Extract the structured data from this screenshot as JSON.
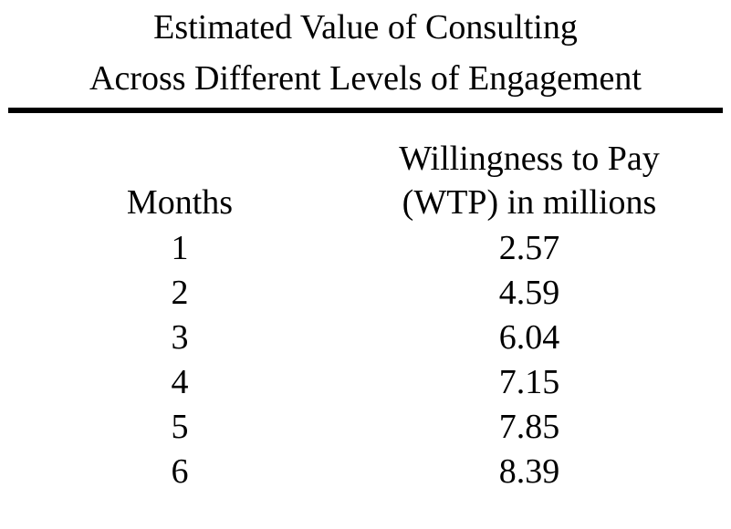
{
  "title": {
    "line1": "Estimated Value of Consulting",
    "line2": "Across Different Levels of Engagement"
  },
  "table": {
    "headers": {
      "months": "Months",
      "wtp_line1": "Willingness to Pay",
      "wtp_line2": "(WTP) in millions"
    },
    "rows": [
      {
        "months": "1",
        "wtp": "2.57"
      },
      {
        "months": "2",
        "wtp": "4.59"
      },
      {
        "months": "3",
        "wtp": "6.04"
      },
      {
        "months": "4",
        "wtp": "7.15"
      },
      {
        "months": "5",
        "wtp": "7.85"
      },
      {
        "months": "6",
        "wtp": "8.39"
      }
    ]
  }
}
